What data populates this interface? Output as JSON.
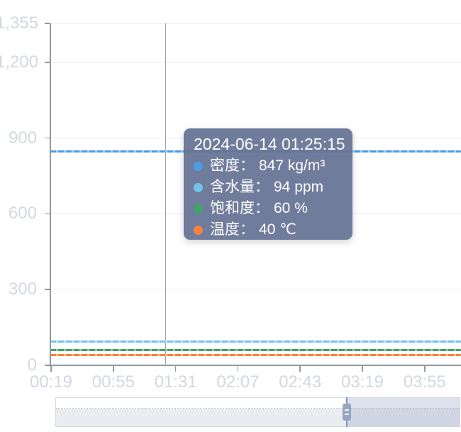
{
  "chart_data": {
    "type": "line",
    "title": "",
    "x_ticks": [
      "00:19",
      "00:55",
      "01:31",
      "02:07",
      "02:43",
      "03:19",
      "03:55"
    ],
    "x_interval_minutes": 36,
    "y_tick_values": [
      0,
      300,
      600,
      900,
      1200,
      1355
    ],
    "y_tick_labels": [
      "0",
      "300",
      "600",
      "900",
      "1,200",
      "1,355"
    ],
    "ylim": [
      0,
      1355
    ],
    "grid": true,
    "legend_position": "none",
    "series": [
      {
        "key": "density",
        "name": "密度",
        "value": 847,
        "unit": "kg/m³",
        "color": "#4a9de5"
      },
      {
        "key": "water",
        "name": "含水量",
        "value": 94,
        "unit": "ppm",
        "color": "#72c3e9"
      },
      {
        "key": "saturation",
        "name": "饱和度",
        "value": 60,
        "unit": "%",
        "color": "#41a368"
      },
      {
        "key": "temperature",
        "name": "温度",
        "value": 40,
        "unit": "℃",
        "color": "#f5823c"
      }
    ]
  },
  "tooltip": {
    "title": "2024-06-14 01:25:15",
    "time": "01:25:15",
    "items": [
      {
        "key": "density",
        "label": "密度",
        "value": "847 kg/m³",
        "color": "#4a9de5"
      },
      {
        "key": "water",
        "label": "含水量",
        "value": "94 ppm",
        "color": "#72c3e9"
      },
      {
        "key": "saturation",
        "label": "饱和度",
        "value": "60 %",
        "color": "#41a368"
      },
      {
        "key": "temperature",
        "label": "温度",
        "value": "40 ℃",
        "color": "#f5823c"
      }
    ],
    "background": "#657293"
  },
  "datazoom": {
    "start_percent": 72,
    "end_percent": 100
  }
}
